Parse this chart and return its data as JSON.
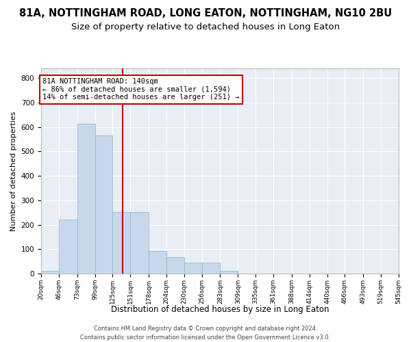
{
  "title": "81A, NOTTINGHAM ROAD, LONG EATON, NOTTINGHAM, NG10 2BU",
  "subtitle": "Size of property relative to detached houses in Long Eaton",
  "xlabel": "Distribution of detached houses by size in Long Eaton",
  "ylabel": "Number of detached properties",
  "footer_line1": "Contains HM Land Registry data © Crown copyright and database right 2024.",
  "footer_line2": "Contains public sector information licensed under the Open Government Licence v3.0.",
  "annotation_line1": "81A NOTTINGHAM ROAD: 140sqm",
  "annotation_line2": "← 86% of detached houses are smaller (1,594)",
  "annotation_line3": "14% of semi-detached houses are larger (251) →",
  "property_size": 140,
  "bar_color": "#c8d8eb",
  "bar_edge_color": "#8ab0cc",
  "vline_color": "#cc0000",
  "annotation_box_color": "#cc0000",
  "bin_edges": [
    20,
    46,
    73,
    99,
    125,
    151,
    178,
    204,
    230,
    256,
    283,
    309,
    335,
    361,
    388,
    414,
    440,
    466,
    493,
    519,
    545
  ],
  "bar_heights": [
    10,
    222,
    614,
    565,
    253,
    253,
    93,
    68,
    44,
    44,
    10,
    0,
    0,
    0,
    0,
    0,
    0,
    0,
    0,
    0
  ],
  "ylim": [
    0,
    840
  ],
  "yticks": [
    0,
    100,
    200,
    300,
    400,
    500,
    600,
    700,
    800
  ],
  "background_color": "#e8eef4",
  "grid_color": "#ffffff",
  "fig_background": "#ffffff",
  "title_fontsize": 10.5,
  "subtitle_fontsize": 9.5,
  "annotation_fontsize": 7.5
}
